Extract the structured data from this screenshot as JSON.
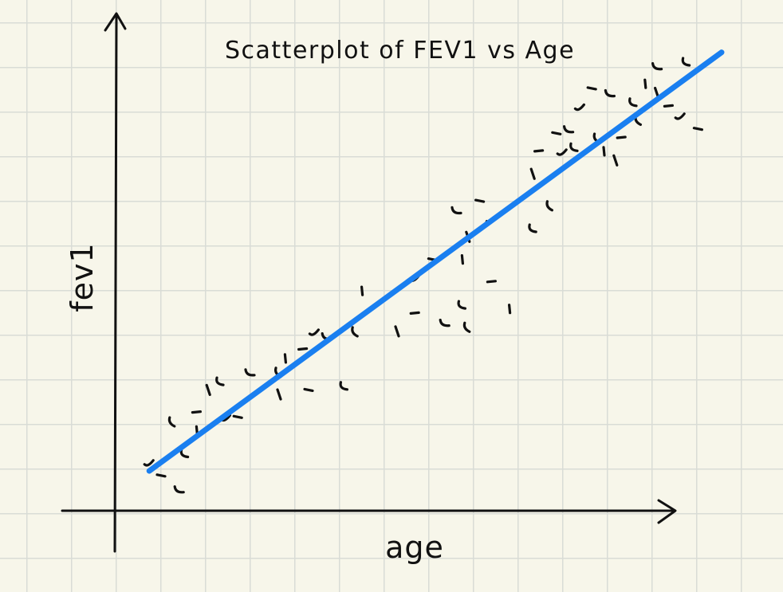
{
  "chart_data": {
    "type": "scatter",
    "title": "Scatterplot of FEV1 vs Age",
    "xlabel": "age",
    "ylabel": "fev1",
    "x_ticks_shown": false,
    "y_ticks_shown": false,
    "grid": true,
    "xlim": [
      0,
      100
    ],
    "ylim": [
      0,
      100
    ],
    "series": [
      {
        "points": [
          [
            3,
            8
          ],
          [
            5,
            5
          ],
          [
            8,
            2
          ],
          [
            9,
            10
          ],
          [
            7,
            17
          ],
          [
            11,
            15
          ],
          [
            13,
            24
          ],
          [
            11,
            19
          ],
          [
            16,
            18
          ],
          [
            18,
            18
          ],
          [
            20,
            28
          ],
          [
            15,
            26
          ],
          [
            25,
            28
          ],
          [
            26,
            31
          ],
          [
            25,
            23
          ],
          [
            29,
            33
          ],
          [
            31,
            37
          ],
          [
            30,
            24
          ],
          [
            33,
            36
          ],
          [
            36,
            25
          ],
          [
            38,
            37
          ],
          [
            39,
            46
          ],
          [
            45,
            37
          ],
          [
            48,
            41
          ],
          [
            48,
            49
          ],
          [
            51,
            53
          ],
          [
            53,
            39
          ],
          [
            56,
            43
          ],
          [
            57,
            38
          ],
          [
            56,
            53
          ],
          [
            57,
            58
          ],
          [
            61,
            48
          ],
          [
            61,
            62
          ],
          [
            59,
            66
          ],
          [
            55,
            64
          ],
          [
            68,
            60
          ],
          [
            71,
            65
          ],
          [
            64,
            42
          ],
          [
            68,
            72
          ],
          [
            69,
            77
          ],
          [
            73,
            77
          ],
          [
            72,
            81
          ],
          [
            74,
            82
          ],
          [
            75,
            78
          ],
          [
            79,
            80
          ],
          [
            80,
            77
          ],
          [
            82,
            75
          ],
          [
            83,
            80
          ],
          [
            76,
            87
          ],
          [
            78,
            91
          ],
          [
            81,
            90
          ],
          [
            85,
            88
          ],
          [
            86,
            84
          ],
          [
            87,
            92
          ],
          [
            89,
            90
          ],
          [
            91,
            87
          ],
          [
            93,
            85
          ],
          [
            96,
            82
          ],
          [
            89,
            96
          ],
          [
            94,
            97
          ]
        ]
      }
    ],
    "trend_line": {
      "x": [
        3,
        100
      ],
      "y": [
        6,
        99
      ]
    },
    "colors": {
      "trend_line": "#1a7ff0",
      "ink": "#111111",
      "grid": "#d9dcd6",
      "paper": "#f7f6ea"
    }
  }
}
